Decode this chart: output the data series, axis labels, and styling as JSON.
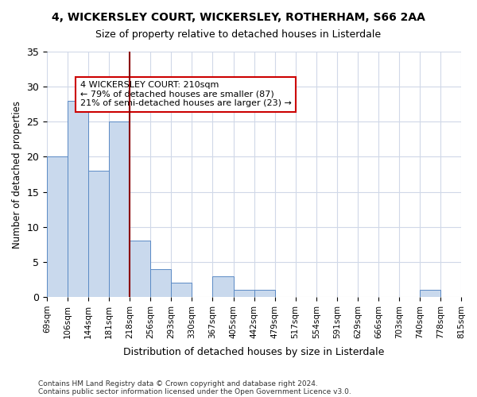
{
  "title": "4, WICKERSLEY COURT, WICKERSLEY, ROTHERHAM, S66 2AA",
  "subtitle": "Size of property relative to detached houses in Listerdale",
  "xlabel": "Distribution of detached houses by size in Listerdale",
  "ylabel": "Number of detached properties",
  "bar_values": [
    20,
    28,
    18,
    25,
    8,
    4,
    2,
    0,
    3,
    1,
    1,
    0,
    0,
    0,
    0,
    0,
    0,
    0,
    1,
    0
  ],
  "bin_labels": [
    "69sqm",
    "106sqm",
    "144sqm",
    "181sqm",
    "218sqm",
    "256sqm",
    "293sqm",
    "330sqm",
    "367sqm",
    "405sqm",
    "442sqm",
    "479sqm",
    "517sqm",
    "554sqm",
    "591sqm",
    "629sqm",
    "666sqm",
    "703sqm",
    "740sqm",
    "778sqm",
    "815sqm"
  ],
  "bar_color": "#c9d9ed",
  "bar_edge_color": "#5b8ac5",
  "vline_x": 3,
  "vline_color": "#8b0000",
  "annotation_text": "4 WICKERSLEY COURT: 210sqm\n← 79% of detached houses are smaller (87)\n21% of semi-detached houses are larger (23) →",
  "annotation_box_color": "#ffffff",
  "annotation_box_edge": "#cc0000",
  "ylim": [
    0,
    35
  ],
  "yticks": [
    0,
    5,
    10,
    15,
    20,
    25,
    30,
    35
  ],
  "footer_line1": "Contains HM Land Registry data © Crown copyright and database right 2024.",
  "footer_line2": "Contains public sector information licensed under the Open Government Licence v3.0.",
  "bg_color": "#ffffff",
  "grid_color": "#d0d8e8"
}
